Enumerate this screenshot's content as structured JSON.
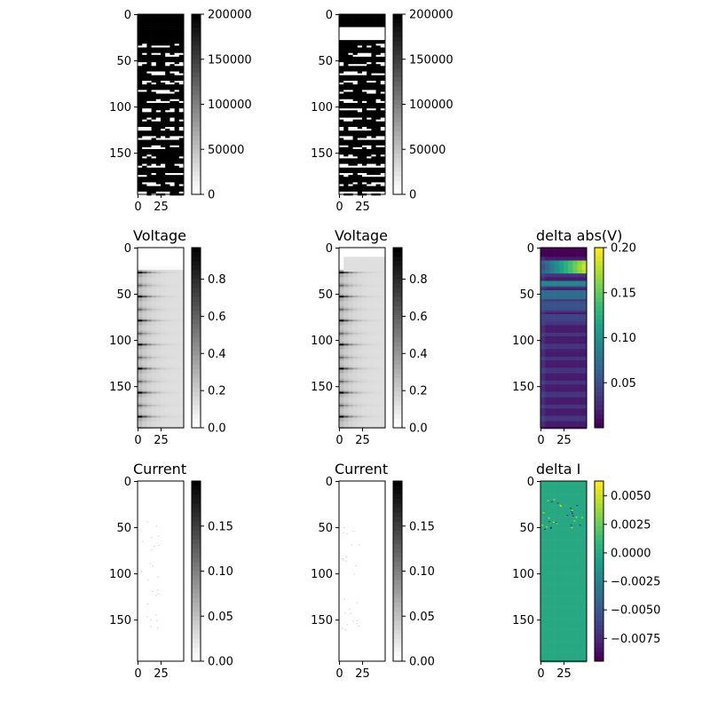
{
  "figure": {
    "colors": {
      "background": "#ffffff",
      "axis": "#000000"
    },
    "colormaps": {
      "gray_r": [
        "#ffffff",
        "#000000"
      ],
      "viridis": [
        "#440154",
        "#482878",
        "#3e4989",
        "#31688e",
        "#26828e",
        "#1f9e89",
        "#35b779",
        "#6ece58",
        "#b5de2b",
        "#fde725"
      ]
    }
  },
  "chart_data": [
    {
      "type": "heatmap",
      "title": "",
      "colormap": "gray_r",
      "x_ticks": [
        "0",
        "25"
      ],
      "y_ticks": [
        "0",
        "50",
        "100",
        "150"
      ],
      "colorbar": {
        "ticks": [
          "200000",
          "150000",
          "100000",
          "50000",
          "0"
        ],
        "min": 0,
        "max": 200000
      },
      "pattern": "bands_with_noise",
      "band_start_row": 30,
      "band_spacing": 10
    },
    {
      "type": "heatmap",
      "title": "",
      "colormap": "gray_r",
      "x_ticks": [
        "0",
        "25"
      ],
      "y_ticks": [
        "0",
        "50",
        "100",
        "150"
      ],
      "colorbar": {
        "ticks": [
          "200000",
          "150000",
          "100000",
          "50000",
          "0"
        ],
        "min": 0,
        "max": 200000
      },
      "pattern": "bands_with_noise_white_strip",
      "band_start_row": 30,
      "band_spacing": 10
    },
    null,
    {
      "type": "heatmap",
      "title": "Voltage",
      "colormap": "gray_r",
      "x_ticks": [
        "0",
        "25"
      ],
      "y_ticks": [
        "0",
        "50",
        "100",
        "150"
      ],
      "colorbar": {
        "ticks": [
          "0.8",
          "0.6",
          "0.4",
          "0.2",
          "0.0"
        ],
        "min": 0.0,
        "max": 0.97
      },
      "pattern": "voltage_tapered_bands"
    },
    {
      "type": "heatmap",
      "title": "Voltage",
      "colormap": "gray_r",
      "x_ticks": [
        "0",
        "25"
      ],
      "y_ticks": [
        "0",
        "50",
        "100",
        "150"
      ],
      "colorbar": {
        "ticks": [
          "0.8",
          "0.6",
          "0.4",
          "0.2",
          "0.0"
        ],
        "min": 0.0,
        "max": 0.97
      },
      "pattern": "voltage_tapered_bands_top_block"
    },
    {
      "type": "heatmap",
      "title": "delta abs(V)",
      "colormap": "viridis",
      "x_ticks": [
        "0",
        "25"
      ],
      "y_ticks": [
        "0",
        "50",
        "100",
        "150"
      ],
      "colorbar": {
        "ticks": [
          "0.20",
          "0.15",
          "0.10",
          "0.05"
        ],
        "min": 0.0,
        "max": 0.2
      },
      "pattern": "delta_v_bands"
    },
    {
      "type": "heatmap",
      "title": "Current",
      "colormap": "gray_r",
      "x_ticks": [
        "0",
        "25"
      ],
      "y_ticks": [
        "0",
        "50",
        "100",
        "150"
      ],
      "colorbar": {
        "ticks": [
          "0.15",
          "0.10",
          "0.05",
          "0.00"
        ],
        "min": 0.0,
        "max": 0.2
      },
      "pattern": "sparse_specks"
    },
    {
      "type": "heatmap",
      "title": "Current",
      "colormap": "gray_r",
      "x_ticks": [
        "0",
        "25"
      ],
      "y_ticks": [
        "0",
        "50",
        "100",
        "150"
      ],
      "colorbar": {
        "ticks": [
          "0.15",
          "0.10",
          "0.05",
          "0.00"
        ],
        "min": 0.0,
        "max": 0.2
      },
      "pattern": "sparse_specks"
    },
    {
      "type": "heatmap",
      "title": "delta I",
      "colormap": "viridis",
      "x_ticks": [
        "0",
        "25"
      ],
      "y_ticks": [
        "0",
        "50",
        "100",
        "150"
      ],
      "colorbar": {
        "ticks": [
          "0.0050",
          "0.0025",
          "0.0000",
          "−0.0025",
          "−0.0050",
          "−0.0075"
        ],
        "min": -0.0095,
        "max": 0.0063
      },
      "pattern": "delta_i_flat"
    }
  ]
}
